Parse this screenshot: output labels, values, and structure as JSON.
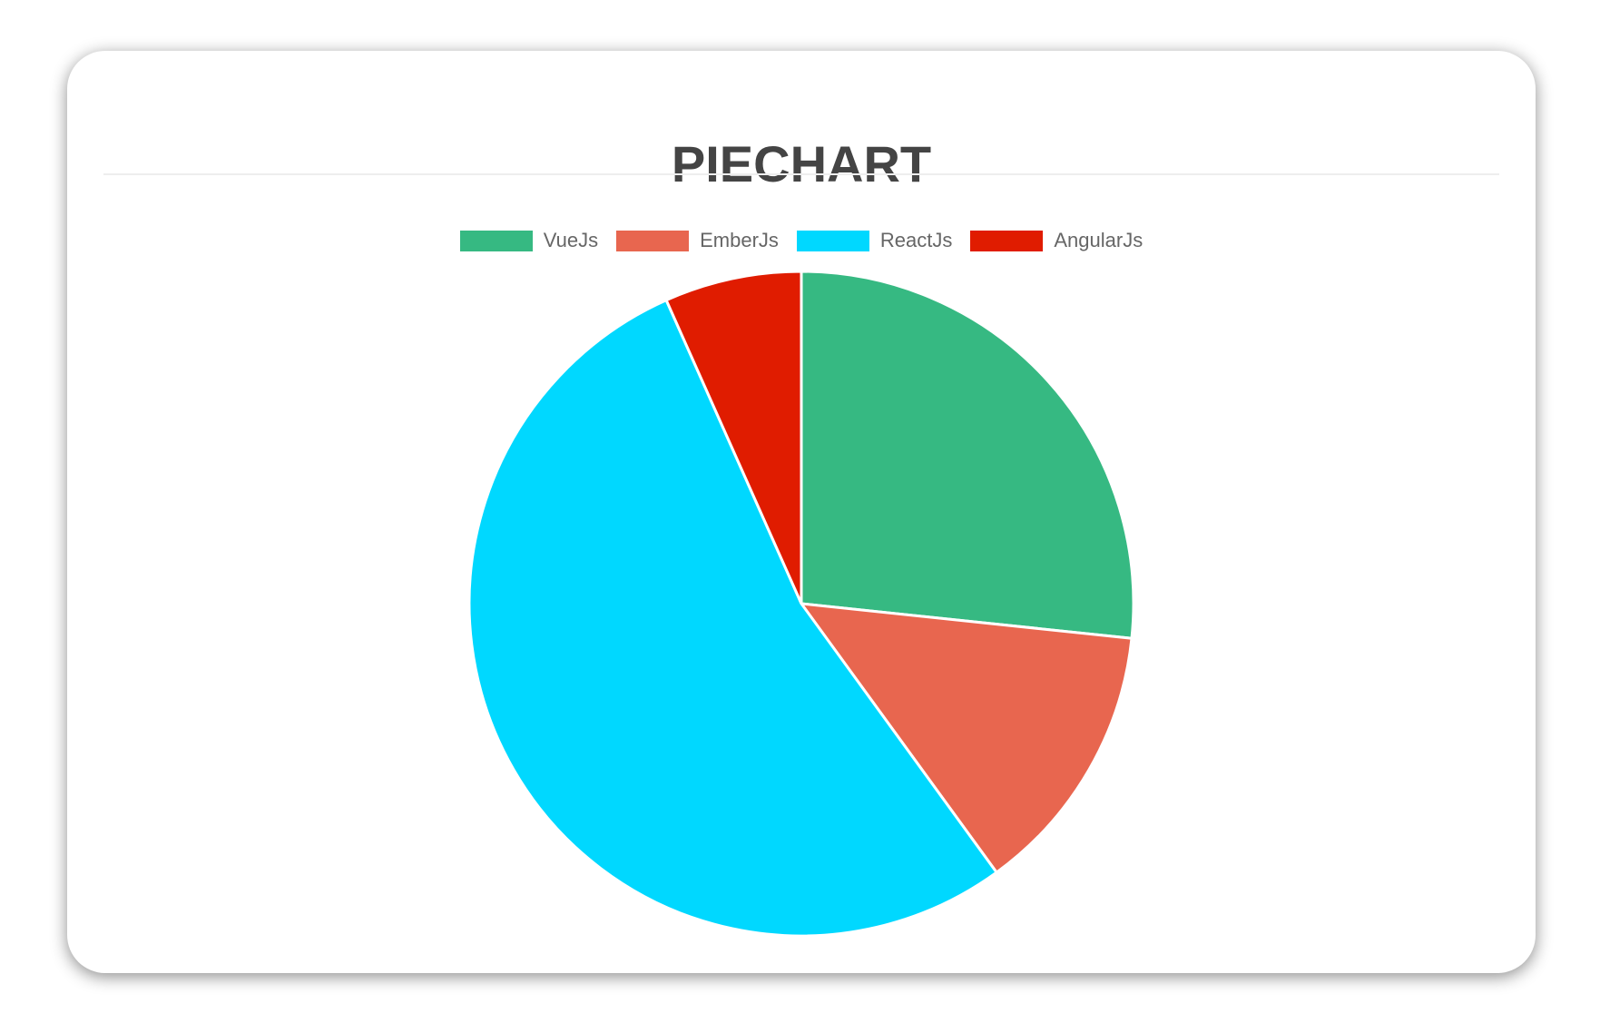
{
  "chart_data": {
    "type": "pie",
    "title": "PIECHART",
    "categories": [
      "VueJs",
      "EmberJs",
      "ReactJs",
      "AngularJs"
    ],
    "values": [
      40,
      20,
      80,
      10
    ],
    "colors": [
      "#36b982",
      "#e8664f",
      "#00d8ff",
      "#e01c00"
    ],
    "legend_position": "top"
  }
}
